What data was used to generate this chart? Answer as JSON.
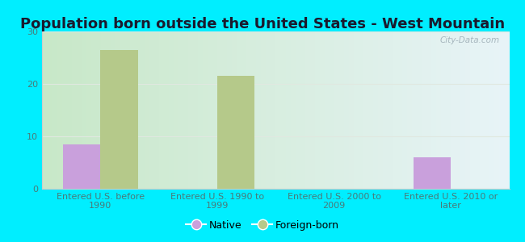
{
  "title": "Population born outside the United States - West Mountain",
  "categories": [
    "Entered U.S. before\n1990",
    "Entered U.S. 1990 to\n1999",
    "Entered U.S. 2000 to\n2009",
    "Entered U.S. 2010 or\nlater"
  ],
  "native_values": [
    8.5,
    0,
    0,
    6.0
  ],
  "foreign_values": [
    26.5,
    21.5,
    0,
    0
  ],
  "native_color": "#c9a0dc",
  "foreign_color": "#b5c98a",
  "background_color": "#00eeff",
  "plot_bg_left": "#c8e8c8",
  "plot_bg_right": "#e8f4f8",
  "ylim": [
    0,
    30
  ],
  "yticks": [
    0,
    10,
    20,
    30
  ],
  "bar_width": 0.32,
  "title_fontsize": 13,
  "tick_label_fontsize": 8,
  "tick_label_color": "#4a7a7a",
  "legend_fontsize": 9,
  "watermark": "City-Data.com",
  "grid_color": "#e0e8e0",
  "spine_color": "#cccccc"
}
